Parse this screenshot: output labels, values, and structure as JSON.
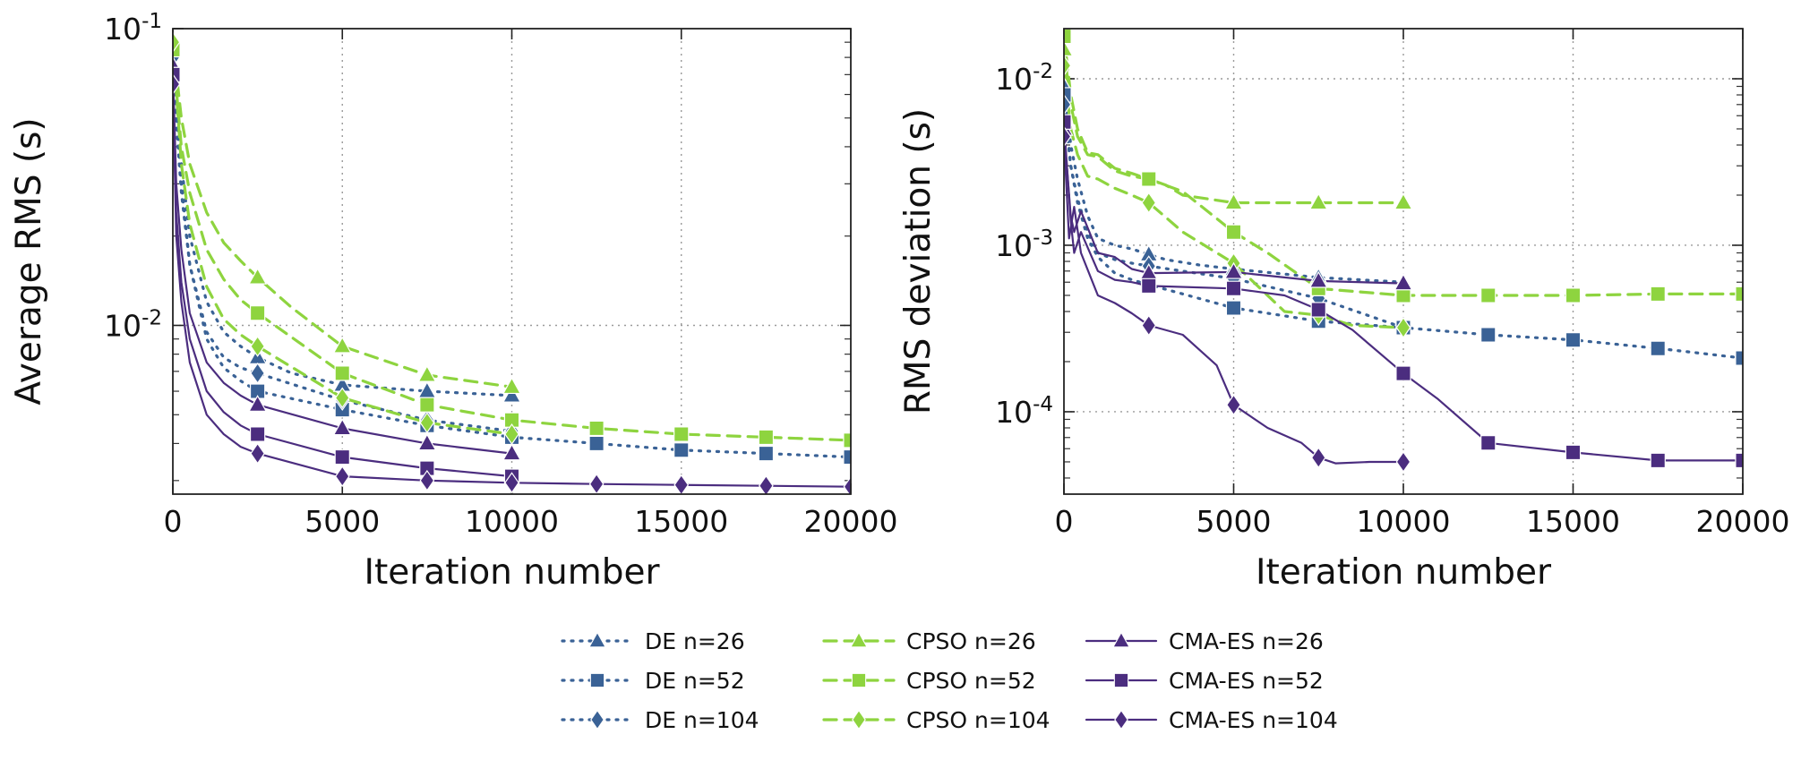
{
  "colors": {
    "DE": "#3a6296",
    "CPSO": "#8ed43f",
    "CMA-ES": "#4b2d7f"
  },
  "legend": [
    {
      "label": "DE n=26",
      "method": "DE",
      "marker": "triangle"
    },
    {
      "label": "DE n=52",
      "method": "DE",
      "marker": "square"
    },
    {
      "label": "DE n=104",
      "method": "DE",
      "marker": "diamond"
    },
    {
      "label": "CPSO n=26",
      "method": "CPSO",
      "marker": "triangle"
    },
    {
      "label": "CPSO n=52",
      "method": "CPSO",
      "marker": "square"
    },
    {
      "label": "CPSO n=104",
      "method": "CPSO",
      "marker": "diamond"
    },
    {
      "label": "CMA-ES n=26",
      "method": "CMA-ES",
      "marker": "triangle"
    },
    {
      "label": "CMA-ES n=52",
      "method": "CMA-ES",
      "marker": "square"
    },
    {
      "label": "CMA-ES n=104",
      "method": "CMA-ES",
      "marker": "diamond"
    }
  ],
  "chart_data": [
    {
      "type": "line",
      "xlabel": "Iteration number",
      "ylabel": "Average RMS (s)",
      "xlim": [
        0,
        20000
      ],
      "ylim": [
        0.0027,
        0.1
      ],
      "yscale": "log",
      "grid": true,
      "xticks": [
        0,
        5000,
        10000,
        15000,
        20000
      ],
      "xtick_labels": [
        "0",
        "5000",
        "10000",
        "15000",
        "20000"
      ],
      "yticks": [
        0.01,
        0.1
      ],
      "ytick_labels": [
        "10^{-2}",
        "10^{-1}"
      ],
      "series": [
        {
          "name": "DE n=26",
          "method": "DE",
          "marker": "triangle",
          "x": [
            0,
            250,
            500,
            1000,
            1500,
            2000,
            2500,
            3500,
            5000,
            7500,
            10000
          ],
          "y": [
            0.07,
            0.035,
            0.02,
            0.012,
            0.0095,
            0.0085,
            0.0078,
            0.0069,
            0.0063,
            0.006,
            0.0058
          ]
        },
        {
          "name": "DE n=52",
          "method": "DE",
          "marker": "square",
          "x": [
            0,
            250,
            500,
            1000,
            1500,
            2000,
            2500,
            5000,
            7500,
            10000,
            12500,
            15000,
            17500,
            20000
          ],
          "y": [
            0.07,
            0.028,
            0.016,
            0.009,
            0.0072,
            0.0065,
            0.006,
            0.0052,
            0.0046,
            0.0042,
            0.004,
            0.0038,
            0.0037,
            0.0036
          ]
        },
        {
          "name": "DE n=104",
          "method": "DE",
          "marker": "diamond",
          "x": [
            0,
            250,
            500,
            1000,
            1500,
            2000,
            2500,
            5000,
            7500,
            10000
          ],
          "y": [
            0.08,
            0.03,
            0.016,
            0.0095,
            0.0078,
            0.0072,
            0.0069,
            0.0056,
            0.0048,
            0.0044
          ]
        },
        {
          "name": "CPSO n=26",
          "method": "CPSO",
          "marker": "triangle",
          "x": [
            0,
            250,
            500,
            1000,
            1500,
            2000,
            2500,
            3500,
            5000,
            7500,
            10000
          ],
          "y": [
            0.09,
            0.05,
            0.035,
            0.024,
            0.019,
            0.0165,
            0.0145,
            0.0115,
            0.0085,
            0.0068,
            0.0062
          ]
        },
        {
          "name": "CPSO n=52",
          "method": "CPSO",
          "marker": "square",
          "x": [
            0,
            250,
            500,
            1000,
            1500,
            2000,
            2500,
            5000,
            7500,
            10000,
            12500,
            15000,
            17500,
            20000
          ],
          "y": [
            0.085,
            0.04,
            0.028,
            0.018,
            0.0143,
            0.0122,
            0.011,
            0.0069,
            0.0054,
            0.0048,
            0.0045,
            0.0043,
            0.0042,
            0.0041
          ]
        },
        {
          "name": "CPSO n=104",
          "method": "CPSO",
          "marker": "diamond",
          "x": [
            0,
            250,
            500,
            1000,
            1500,
            2000,
            2500,
            5000,
            7500,
            10000
          ],
          "y": [
            0.09,
            0.035,
            0.022,
            0.0135,
            0.0105,
            0.0093,
            0.0085,
            0.0057,
            0.0047,
            0.0043
          ]
        },
        {
          "name": "CMA-ES n=26",
          "method": "CMA-ES",
          "marker": "triangle",
          "x": [
            0,
            100,
            250,
            500,
            1000,
            1500,
            2000,
            2500,
            5000,
            7500,
            10000
          ],
          "y": [
            0.075,
            0.03,
            0.018,
            0.011,
            0.0075,
            0.0064,
            0.0058,
            0.0054,
            0.0045,
            0.004,
            0.0037
          ]
        },
        {
          "name": "CMA-ES n=52",
          "method": "CMA-ES",
          "marker": "square",
          "x": [
            0,
            100,
            250,
            500,
            1000,
            1500,
            2000,
            2500,
            5000,
            7500,
            10000
          ],
          "y": [
            0.07,
            0.024,
            0.014,
            0.009,
            0.006,
            0.0051,
            0.0046,
            0.0043,
            0.0036,
            0.0033,
            0.0031
          ]
        },
        {
          "name": "CMA-ES n=104",
          "method": "CMA-ES",
          "marker": "diamond",
          "x": [
            0,
            100,
            250,
            500,
            1000,
            1500,
            2000,
            2500,
            5000,
            7500,
            10000,
            12500,
            15000,
            17500,
            20000
          ],
          "y": [
            0.065,
            0.02,
            0.012,
            0.0075,
            0.005,
            0.0043,
            0.0039,
            0.0037,
            0.0031,
            0.003,
            0.00295,
            0.00292,
            0.0029,
            0.00288,
            0.00286
          ]
        }
      ]
    },
    {
      "type": "line",
      "xlabel": "Iteration number",
      "ylabel": "RMS deviation (s)",
      "xlim": [
        0,
        20000
      ],
      "ylim": [
        3.2e-05,
        0.02
      ],
      "yscale": "log",
      "grid": true,
      "xticks": [
        0,
        5000,
        10000,
        15000,
        20000
      ],
      "xtick_labels": [
        "0",
        "5000",
        "10000",
        "15000",
        "20000"
      ],
      "yticks": [
        0.0001,
        0.001,
        0.01
      ],
      "ytick_labels": [
        "10^{-4}",
        "10^{-3}",
        "10^{-2}"
      ],
      "series": [
        {
          "name": "DE n=26",
          "method": "DE",
          "marker": "triangle",
          "x": [
            0,
            200,
            400,
            700,
            1000,
            1500,
            2000,
            2500,
            3000,
            4000,
            5000,
            7500,
            10000
          ],
          "y": [
            0.009,
            0.004,
            0.0025,
            0.0015,
            0.0011,
            0.001,
            0.00095,
            0.00088,
            0.00082,
            0.00076,
            0.00072,
            0.00064,
            0.0006
          ]
        },
        {
          "name": "DE n=52",
          "method": "DE",
          "marker": "square",
          "x": [
            0,
            200,
            400,
            700,
            1000,
            1500,
            2000,
            2500,
            5000,
            7500,
            10000,
            12500,
            15000,
            17500,
            20000
          ],
          "y": [
            0.008,
            0.003,
            0.0018,
            0.0011,
            0.00085,
            0.00068,
            0.00062,
            0.00058,
            0.00042,
            0.00035,
            0.00032,
            0.00029,
            0.00027,
            0.00024,
            0.00021
          ]
        },
        {
          "name": "DE n=104",
          "method": "DE",
          "marker": "diamond",
          "x": [
            0,
            200,
            400,
            700,
            1000,
            1500,
            2000,
            2500,
            5000,
            7500,
            10000
          ],
          "y": [
            0.007,
            0.003,
            0.0019,
            0.0012,
            0.0009,
            0.00082,
            0.00078,
            0.00075,
            0.00063,
            0.00048,
            0.00032
          ]
        },
        {
          "name": "CPSO n=26",
          "method": "CPSO",
          "marker": "triangle",
          "x": [
            0,
            200,
            400,
            700,
            1000,
            1500,
            2000,
            2500,
            3000,
            3500,
            5000,
            7500,
            10000
          ],
          "y": [
            0.015,
            0.007,
            0.0045,
            0.0035,
            0.0034,
            0.0028,
            0.0026,
            0.0025,
            0.0023,
            0.002,
            0.0018,
            0.0018,
            0.0018
          ]
        },
        {
          "name": "CPSO n=52",
          "method": "CPSO",
          "marker": "square",
          "x": [
            0,
            200,
            400,
            700,
            1000,
            1500,
            2000,
            2500,
            3500,
            5000,
            6000,
            7500,
            10000,
            12500,
            15000,
            17500,
            20000
          ],
          "y": [
            0.018,
            0.008,
            0.005,
            0.0036,
            0.0035,
            0.0029,
            0.0027,
            0.0025,
            0.0021,
            0.0012,
            0.0009,
            0.00055,
            0.0005,
            0.0005,
            0.0005,
            0.00051,
            0.00051
          ]
        },
        {
          "name": "CPSO n=104",
          "method": "CPSO",
          "marker": "diamond",
          "x": [
            0,
            200,
            400,
            700,
            1000,
            1500,
            2000,
            2500,
            3500,
            5000,
            6500,
            7500,
            8500,
            10000
          ],
          "y": [
            0.012,
            0.005,
            0.0035,
            0.0026,
            0.0025,
            0.0022,
            0.002,
            0.0018,
            0.0012,
            0.00078,
            0.0004,
            0.00038,
            0.00033,
            0.00032
          ]
        },
        {
          "name": "CMA-ES n=26",
          "method": "CMA-ES",
          "marker": "triangle",
          "x": [
            0,
            200,
            300,
            500,
            1000,
            1500,
            2000,
            2500,
            5000,
            7500,
            10000
          ],
          "y": [
            0.005,
            0.0015,
            0.0012,
            0.0016,
            0.0009,
            0.00085,
            0.00072,
            0.00068,
            0.00069,
            0.00061,
            0.00059
          ]
        },
        {
          "name": "CMA-ES n=52",
          "method": "CMA-ES",
          "marker": "square",
          "x": [
            0,
            200,
            300,
            500,
            1000,
            1500,
            2000,
            2500,
            5000,
            6500,
            7500,
            8500,
            10000,
            11000,
            12500,
            15000,
            17500,
            20000
          ],
          "y": [
            0.0055,
            0.0014,
            0.0009,
            0.0012,
            0.0007,
            0.00062,
            0.0006,
            0.00057,
            0.00055,
            0.0005,
            0.00041,
            0.00031,
            0.00017,
            0.00012,
            6.5e-05,
            5.7e-05,
            5.1e-05,
            5.1e-05
          ]
        },
        {
          "name": "CMA-ES n=104",
          "method": "CMA-ES",
          "marker": "diamond",
          "x": [
            0,
            150,
            300,
            500,
            1000,
            1500,
            2000,
            2500,
            3500,
            4500,
            5000,
            6000,
            7000,
            7500,
            8000,
            9000,
            10000
          ],
          "y": [
            0.0045,
            0.0011,
            0.0017,
            0.0009,
            0.0005,
            0.00045,
            0.00039,
            0.00033,
            0.00029,
            0.00019,
            0.00011,
            8e-05,
            6.5e-05,
            5.3e-05,
            4.9e-05,
            5e-05,
            5e-05
          ]
        }
      ]
    }
  ]
}
